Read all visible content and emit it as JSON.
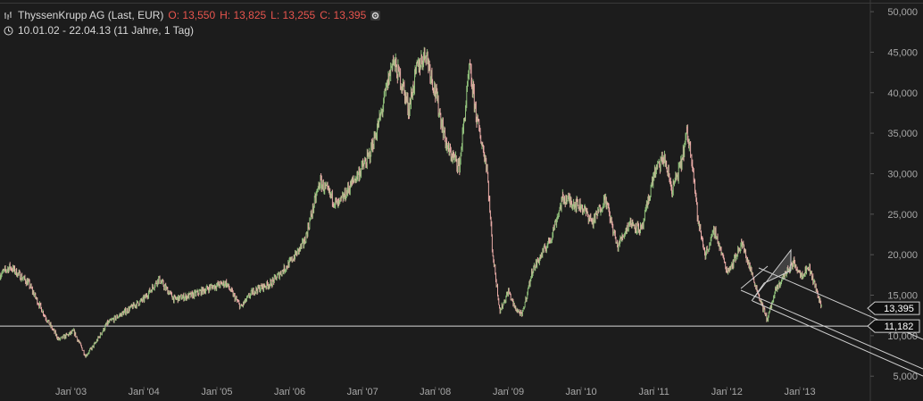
{
  "header": {
    "instrument": "ThyssenKrupp AG (Last, EUR)",
    "open": "O: 13,550",
    "high": "H: 13,825",
    "low": "L: 13,255",
    "close": "C: 13,395",
    "range": "10.01.02 - 22.04.13 (11 Jahre, 1 Tag)"
  },
  "colors": {
    "background": "#1c1c1c",
    "up": "#8fbf7a",
    "down": "#e8aaa6",
    "grid": "#2a2a2a",
    "axis_text": "#a8a8a8",
    "header_red": "#e8554e"
  },
  "icons": [
    "bars-icon",
    "clock-icon",
    "settings-dot-icon"
  ],
  "chart_data": {
    "type": "line",
    "title": "",
    "xlabel": "",
    "ylabel": "",
    "ylim": [
      3700,
      51000
    ],
    "xlim": [
      "2002-01-10",
      "2013-12-20"
    ],
    "grid": false,
    "legend": "none",
    "x_ticks": [
      "Jan '03",
      "Jan '04",
      "Jan '05",
      "Jan '06",
      "Jan '07",
      "Jan '08",
      "Jan '09",
      "Jan '10",
      "Jan '11",
      "Jan '12",
      "Jan '13"
    ],
    "y_ticks": [
      "5,000",
      "10,000",
      "15,000",
      "20,000",
      "25,000",
      "30,000",
      "35,000",
      "40,000",
      "45,000",
      "50,000"
    ],
    "price_series": {
      "name": "ThyssenKrupp AG",
      "x": [
        "2002-01-10",
        "2002-03-01",
        "2002-06-01",
        "2002-09-01",
        "2002-11-01",
        "2003-01-15",
        "2003-03-15",
        "2003-05-01",
        "2003-07-01",
        "2003-10-01",
        "2004-01-01",
        "2004-03-15",
        "2004-06-01",
        "2004-09-01",
        "2004-12-01",
        "2005-02-15",
        "2005-05-01",
        "2005-07-01",
        "2005-10-01",
        "2006-01-01",
        "2006-03-15",
        "2006-06-01",
        "2006-09-01",
        "2006-11-01",
        "2007-02-01",
        "2007-04-01",
        "2007-06-01",
        "2007-07-20",
        "2007-08-20",
        "2007-10-01",
        "2007-11-15",
        "2008-01-01",
        "2008-03-01",
        "2008-05-01",
        "2008-06-20",
        "2008-08-01",
        "2008-09-15",
        "2008-10-15",
        "2008-11-20",
        "2009-01-01",
        "2009-02-01",
        "2009-03-10",
        "2009-05-01",
        "2009-08-01",
        "2009-10-01",
        "2010-01-01",
        "2010-03-01",
        "2010-05-01",
        "2010-07-01",
        "2010-09-01",
        "2010-11-01",
        "2011-01-01",
        "2011-02-20",
        "2011-04-01",
        "2011-05-15",
        "2011-06-15",
        "2011-07-10",
        "2011-08-10",
        "2011-09-15",
        "2011-11-01",
        "2012-01-01",
        "2012-02-01",
        "2012-03-15",
        "2012-05-01",
        "2012-06-15",
        "2012-07-20",
        "2012-09-01",
        "2012-10-15",
        "2012-12-01",
        "2013-01-10",
        "2013-02-15",
        "2013-03-20",
        "2013-04-22"
      ],
      "values": [
        17500,
        18500,
        16500,
        12000,
        9500,
        10500,
        7500,
        9000,
        11500,
        13000,
        14500,
        17000,
        14500,
        15000,
        16000,
        16500,
        13500,
        15500,
        16500,
        19000,
        21500,
        29000,
        26000,
        28500,
        32000,
        37000,
        44000,
        41000,
        38000,
        43000,
        45000,
        40000,
        33000,
        31000,
        43000,
        36000,
        31000,
        20000,
        13000,
        15500,
        13500,
        12500,
        18000,
        22000,
        27000,
        26000,
        24000,
        27000,
        21000,
        24000,
        23000,
        30000,
        32000,
        28000,
        31000,
        35000,
        32000,
        24000,
        20000,
        23000,
        18000,
        19000,
        21500,
        18000,
        14500,
        12000,
        15500,
        17500,
        19000,
        17500,
        18500,
        16000,
        13400
      ]
    },
    "reference_lines": [
      {
        "label": "11,182",
        "value": 11182
      },
      {
        "label": "13,395",
        "value": 13395
      }
    ]
  }
}
